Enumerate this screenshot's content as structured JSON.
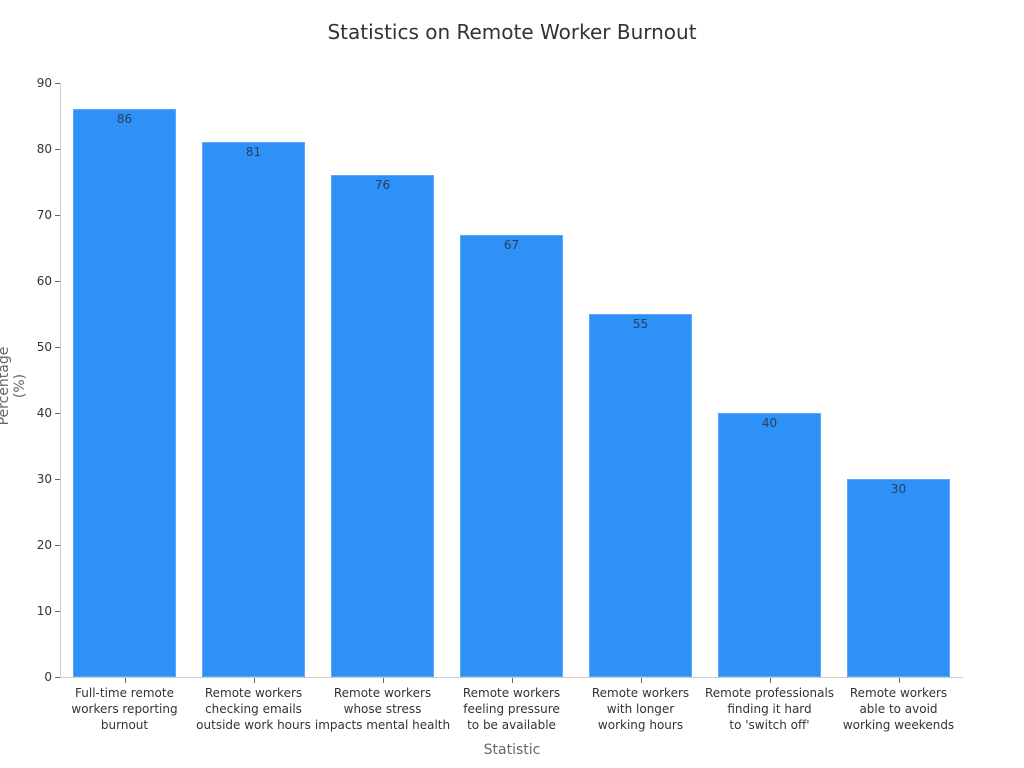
{
  "chart_data": {
    "type": "bar",
    "title": "Statistics on Remote Worker Burnout",
    "xlabel": "Statistic",
    "ylabel": "Percentage (%)",
    "ylim": [
      0,
      90
    ],
    "yticks": [
      0,
      10,
      20,
      30,
      40,
      50,
      60,
      70,
      80,
      90
    ],
    "grid": false,
    "legend": null,
    "bar_color": "#2e91f8",
    "categories": [
      "Full-time remote\nworkers reporting\nburnout",
      "Remote workers\nchecking emails\noutside work hours",
      "Remote workers\nwhose stress\nimpacts mental health",
      "Remote workers\nfeeling pressure\nto be available",
      "Remote workers\nwith longer\nworking hours",
      "Remote professionals\nfinding it hard\nto 'switch off'",
      "Remote workers\nable to avoid\nworking weekends"
    ],
    "values": [
      86,
      81,
      76,
      67,
      55,
      40,
      30
    ]
  }
}
